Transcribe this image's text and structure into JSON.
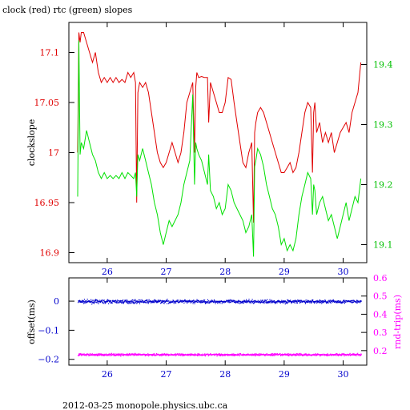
{
  "title": "clock (red) rtc (green) slopes",
  "footer": "2012-03-25  monopole.physics.ubc.ca",
  "colors": {
    "clock": "#e00000",
    "rtc": "#00e000",
    "offset": "#0000cc",
    "rndtrip": "#ff00ff",
    "axis": "#000000"
  },
  "chart_data": [
    {
      "type": "line",
      "title": "clock (red) rtc (green) slopes",
      "ylabel": "clockslope",
      "y2label": "",
      "xlim": [
        25.35,
        30.4
      ],
      "ylim": [
        16.89,
        17.13
      ],
      "y2lim": [
        19.07,
        19.47
      ],
      "x_ticks": [
        26,
        27,
        28,
        29,
        30
      ],
      "y_ticks": [
        16.9,
        16.95,
        17,
        17.05,
        17.1
      ],
      "y_tick_labels": [
        "16.9",
        "16.95",
        "17",
        "17.05",
        "17.1"
      ],
      "y2_ticks": [
        19.1,
        19.2,
        19.3,
        19.4
      ],
      "y2_tick_labels": [
        "19.1",
        "19.2",
        "19.3",
        "19.4"
      ],
      "series": [
        {
          "name": "clock",
          "axis": "left",
          "color": "#e00000",
          "x": [
            25.5,
            25.52,
            25.54,
            25.56,
            25.6,
            25.65,
            25.7,
            25.75,
            25.8,
            25.85,
            25.9,
            25.95,
            26.0,
            26.05,
            26.1,
            26.15,
            26.2,
            26.25,
            26.3,
            26.35,
            26.4,
            26.45,
            26.48,
            26.5,
            26.52,
            26.55,
            26.6,
            26.65,
            26.7,
            26.75,
            26.8,
            26.85,
            26.9,
            26.95,
            27.0,
            27.05,
            27.1,
            27.15,
            27.2,
            27.25,
            27.3,
            27.35,
            27.4,
            27.45,
            27.48,
            27.5,
            27.52,
            27.55,
            27.6,
            27.65,
            27.7,
            27.72,
            27.75,
            27.8,
            27.85,
            27.9,
            27.95,
            28.0,
            28.05,
            28.1,
            28.15,
            28.2,
            28.25,
            28.3,
            28.35,
            28.4,
            28.45,
            28.48,
            28.5,
            28.52,
            28.55,
            28.6,
            28.65,
            28.7,
            28.75,
            28.8,
            28.85,
            28.9,
            28.95,
            29.0,
            29.05,
            29.1,
            29.15,
            29.2,
            29.25,
            29.3,
            29.35,
            29.4,
            29.45,
            29.48,
            29.5,
            29.52,
            29.55,
            29.6,
            29.65,
            29.7,
            29.75,
            29.8,
            29.85,
            29.9,
            29.95,
            30.0,
            30.05,
            30.1,
            30.15,
            30.2,
            30.25,
            30.3
          ],
          "y": [
            17.0,
            17.12,
            17.11,
            17.12,
            17.12,
            17.11,
            17.1,
            17.09,
            17.1,
            17.08,
            17.07,
            17.075,
            17.07,
            17.075,
            17.07,
            17.075,
            17.07,
            17.073,
            17.07,
            17.08,
            17.075,
            17.08,
            17.07,
            16.95,
            17.06,
            17.07,
            17.065,
            17.07,
            17.06,
            17.04,
            17.02,
            17.0,
            16.99,
            16.985,
            16.99,
            17.0,
            17.01,
            17.0,
            16.99,
            17.0,
            17.02,
            17.05,
            17.06,
            17.07,
            17.0,
            17.065,
            17.08,
            17.075,
            17.076,
            17.075,
            17.075,
            17.03,
            17.07,
            17.06,
            17.05,
            17.04,
            17.04,
            17.05,
            17.075,
            17.073,
            17.05,
            17.03,
            17.01,
            16.99,
            16.985,
            17.0,
            17.01,
            16.93,
            17.02,
            17.03,
            17.04,
            17.045,
            17.04,
            17.03,
            17.02,
            17.01,
            17.0,
            16.99,
            16.98,
            16.98,
            16.985,
            16.99,
            16.98,
            16.985,
            17.0,
            17.02,
            17.04,
            17.05,
            17.045,
            16.98,
            17.04,
            17.05,
            17.02,
            17.03,
            17.01,
            17.02,
            17.01,
            17.02,
            17.0,
            17.01,
            17.02,
            17.025,
            17.03,
            17.02,
            17.04,
            17.05,
            17.06,
            17.09
          ]
        },
        {
          "name": "rtc",
          "axis": "right",
          "color": "#00e000",
          "x": [
            25.5,
            25.52,
            25.54,
            25.56,
            25.6,
            25.65,
            25.7,
            25.75,
            25.8,
            25.85,
            25.9,
            25.95,
            26.0,
            26.05,
            26.1,
            26.15,
            26.2,
            26.25,
            26.3,
            26.35,
            26.4,
            26.45,
            26.48,
            26.5,
            26.52,
            26.55,
            26.6,
            26.65,
            26.7,
            26.75,
            26.8,
            26.85,
            26.9,
            26.95,
            27.0,
            27.05,
            27.1,
            27.15,
            27.2,
            27.25,
            27.3,
            27.35,
            27.4,
            27.45,
            27.48,
            27.5,
            27.52,
            27.55,
            27.6,
            27.65,
            27.7,
            27.72,
            27.75,
            27.8,
            27.85,
            27.9,
            27.95,
            28.0,
            28.05,
            28.1,
            28.15,
            28.2,
            28.25,
            28.3,
            28.35,
            28.4,
            28.45,
            28.48,
            28.5,
            28.52,
            28.55,
            28.6,
            28.65,
            28.7,
            28.75,
            28.8,
            28.85,
            28.9,
            28.95,
            29.0,
            29.05,
            29.1,
            29.15,
            29.2,
            29.25,
            29.3,
            29.35,
            29.4,
            29.45,
            29.48,
            29.5,
            29.52,
            29.55,
            29.6,
            29.65,
            29.7,
            29.75,
            29.8,
            29.85,
            29.9,
            29.95,
            30.0,
            30.05,
            30.1,
            30.15,
            30.2,
            30.25,
            30.3
          ],
          "y": [
            19.18,
            19.44,
            19.25,
            19.27,
            19.26,
            19.29,
            19.27,
            19.25,
            19.24,
            19.22,
            19.21,
            19.22,
            19.21,
            19.215,
            19.21,
            19.215,
            19.21,
            19.22,
            19.21,
            19.22,
            19.215,
            19.21,
            19.22,
            19.18,
            19.25,
            19.24,
            19.26,
            19.24,
            19.22,
            19.2,
            19.17,
            19.15,
            19.12,
            19.1,
            19.12,
            19.14,
            19.13,
            19.14,
            19.15,
            19.17,
            19.2,
            19.22,
            19.24,
            19.35,
            19.2,
            19.27,
            19.26,
            19.25,
            19.24,
            19.22,
            19.2,
            19.25,
            19.19,
            19.18,
            19.16,
            19.17,
            19.15,
            19.16,
            19.2,
            19.19,
            19.17,
            19.16,
            19.15,
            19.14,
            19.12,
            19.13,
            19.15,
            19.08,
            19.23,
            19.24,
            19.26,
            19.25,
            19.23,
            19.2,
            19.18,
            19.16,
            19.15,
            19.13,
            19.1,
            19.11,
            19.09,
            19.1,
            19.09,
            19.11,
            19.15,
            19.18,
            19.2,
            19.22,
            19.21,
            19.15,
            19.2,
            19.19,
            19.15,
            19.17,
            19.18,
            19.16,
            19.14,
            19.15,
            19.13,
            19.11,
            19.13,
            19.15,
            19.17,
            19.14,
            19.16,
            19.18,
            19.17,
            19.21
          ]
        }
      ]
    },
    {
      "type": "scatter",
      "ylabel": "offset(ms)",
      "y2label": "rnd-trip(ms)",
      "xlim": [
        25.35,
        30.4
      ],
      "ylim": [
        -0.22,
        0.08
      ],
      "y2lim": [
        0.12,
        0.6
      ],
      "x_ticks": [
        26,
        27,
        28,
        29,
        30
      ],
      "y_ticks": [
        -0.2,
        -0.1,
        0
      ],
      "y_tick_labels": [
        "−0.2",
        "−0.1",
        "0"
      ],
      "y2_ticks": [
        0.2,
        0.3,
        0.4,
        0.5,
        0.6
      ],
      "y2_tick_labels": [
        "0.2",
        "0.3",
        "0.4",
        "0.5",
        "0.6"
      ],
      "series": [
        {
          "name": "offset",
          "axis": "left",
          "color": "#0000cc",
          "y_center": 0.0,
          "spread": 0.01,
          "x_range": [
            25.5,
            30.3
          ]
        },
        {
          "name": "rnd-trip",
          "axis": "right",
          "color": "#ff00ff",
          "y_center": 0.18,
          "spread": 0.01,
          "x_range": [
            25.5,
            30.3
          ]
        }
      ]
    }
  ]
}
